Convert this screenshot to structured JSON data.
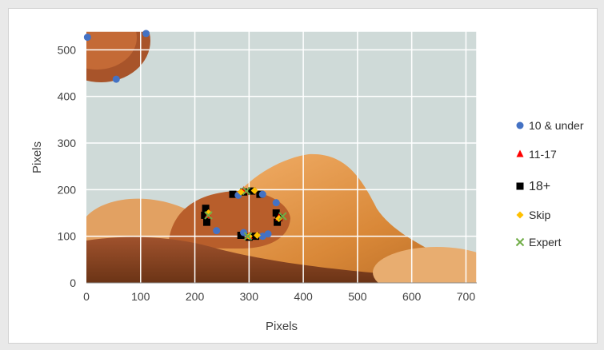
{
  "chart_data": {
    "type": "scatter",
    "title": "",
    "xlabel": "Pixels",
    "ylabel": "Pixels",
    "xlim": [
      0,
      720
    ],
    "ylim": [
      0,
      540
    ],
    "xticks": [
      "0",
      "100",
      "200",
      "300",
      "400",
      "500",
      "600",
      "700"
    ],
    "yticks": [
      "0",
      "100",
      "200",
      "300",
      "400",
      "500"
    ],
    "grid": true,
    "background": "photograph of butterfly wing scales (orange-brown) under a microscope",
    "legend_position": "right",
    "series": [
      {
        "name": "10 & under",
        "marker": "circle",
        "color": "#4472c4",
        "points": [
          [
            2,
            527
          ],
          [
            110,
            535
          ],
          [
            55,
            437
          ],
          [
            280,
            188
          ],
          [
            325,
            190
          ],
          [
            350,
            172
          ],
          [
            240,
            112
          ],
          [
            290,
            108
          ],
          [
            325,
            100
          ],
          [
            335,
            105
          ]
        ]
      },
      {
        "name": "11-17",
        "marker": "triangle",
        "color": "#ff0000",
        "points": [
          [
            290,
            198
          ],
          [
            300,
            100
          ],
          [
            355,
            140
          ],
          [
            225,
            145
          ]
        ]
      },
      {
        "name": "18+",
        "marker": "square",
        "color": "#000000",
        "points": [
          [
            270,
            190
          ],
          [
            290,
            195
          ],
          [
            305,
            197
          ],
          [
            320,
            190
          ],
          [
            220,
            160
          ],
          [
            218,
            145
          ],
          [
            222,
            130
          ],
          [
            350,
            150
          ],
          [
            355,
            140
          ],
          [
            352,
            130
          ],
          [
            285,
            102
          ],
          [
            300,
            98
          ],
          [
            312,
            100
          ]
        ]
      },
      {
        "name": "Skip",
        "marker": "diamond",
        "color": "#ffc000",
        "points": [
          [
            285,
            195
          ],
          [
            310,
            198
          ],
          [
            225,
            150
          ],
          [
            355,
            138
          ],
          [
            300,
            100
          ],
          [
            315,
            102
          ]
        ]
      },
      {
        "name": "Expert",
        "marker": "x",
        "color": "#70ad47",
        "points": [
          [
            295,
            197
          ],
          [
            225,
            145
          ],
          [
            362,
            143
          ],
          [
            298,
            100
          ]
        ]
      }
    ]
  }
}
